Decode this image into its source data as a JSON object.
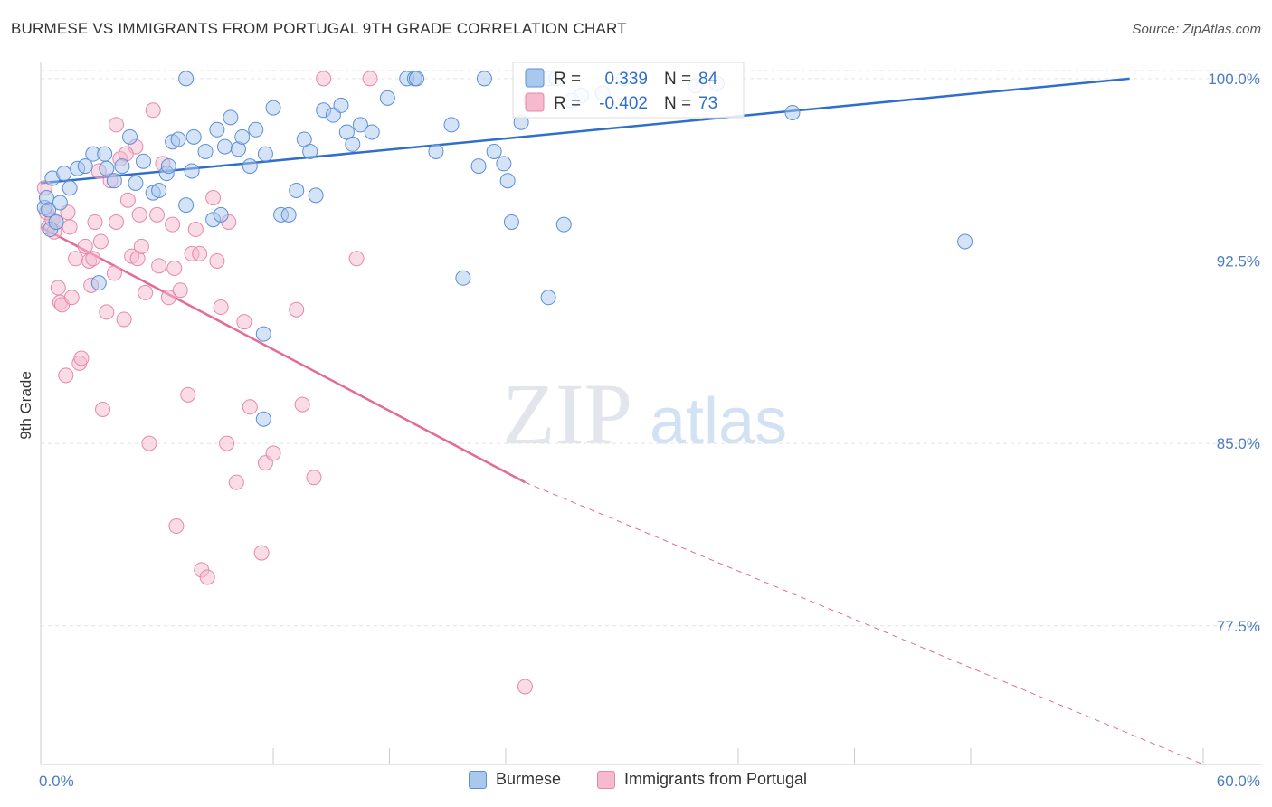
{
  "title": "BURMESE VS IMMIGRANTS FROM PORTUGAL 9TH GRADE CORRELATION CHART",
  "source": "Source: ZipAtlas.com",
  "watermark": {
    "zip": "ZIP",
    "atlas": "atlas"
  },
  "colors": {
    "blue_fill": "#a9c8ee",
    "blue_stroke": "#5b8fd6",
    "blue_line": "#2f6fcb",
    "pink_fill": "#f6b9cd",
    "pink_stroke": "#e688a9",
    "pink_line": "#e56a96",
    "tick_text": "#4a7cc9",
    "grid": "#e3e3e3"
  },
  "legend": {
    "rows": [
      {
        "r_label": "R =",
        "r_value": "0.339",
        "n_label": "N =",
        "n_value": "84"
      },
      {
        "r_label": "R =",
        "r_value": "-0.402",
        "n_label": "N =",
        "n_value": "73"
      }
    ]
  },
  "bottom_legend": [
    {
      "label": "Burmese"
    },
    {
      "label": "Immigrants from Portugal"
    }
  ],
  "chart_data": {
    "type": "scatter",
    "title": "BURMESE VS IMMIGRANTS FROM PORTUGAL 9TH GRADE CORRELATION CHART",
    "xlabel": "",
    "ylabel": "9th Grade",
    "xlim": [
      0,
      60
    ],
    "ylim": [
      71.8,
      100.7
    ],
    "x_tick_labels": [
      {
        "value": 0,
        "label": "0.0%"
      },
      {
        "value": 60,
        "label": "60.0%"
      }
    ],
    "y_tick_labels": [
      {
        "value": 100,
        "label": "100.0%"
      },
      {
        "value": 92.5,
        "label": "92.5%"
      },
      {
        "value": 85,
        "label": "85.0%"
      },
      {
        "value": 77.5,
        "label": "77.5%"
      }
    ],
    "grid": "horizontal",
    "legend_position": "top-center",
    "series": [
      {
        "name": "Burmese",
        "r": 0.339,
        "n": 84,
        "trend": {
          "x": [
            0,
            56.2
          ],
          "y": [
            95.7,
            100.0
          ]
        },
        "points": [
          [
            0.2,
            94.7
          ],
          [
            0.3,
            95.1
          ],
          [
            0.4,
            94.6
          ],
          [
            0.5,
            93.8
          ],
          [
            0.6,
            95.9
          ],
          [
            0.8,
            94.1
          ],
          [
            1.0,
            94.9
          ],
          [
            1.2,
            96.1
          ],
          [
            1.5,
            95.5
          ],
          [
            1.9,
            96.3
          ],
          [
            2.3,
            96.4
          ],
          [
            2.7,
            96.9
          ],
          [
            3.3,
            96.9
          ],
          [
            3.4,
            96.3
          ],
          [
            3.8,
            95.8
          ],
          [
            4.2,
            96.4
          ],
          [
            4.6,
            97.6
          ],
          [
            4.9,
            95.7
          ],
          [
            5.3,
            96.6
          ],
          [
            5.8,
            95.3
          ],
          [
            6.1,
            95.4
          ],
          [
            6.5,
            96.1
          ],
          [
            6.6,
            96.4
          ],
          [
            6.8,
            97.4
          ],
          [
            7.1,
            97.5
          ],
          [
            7.5,
            94.8
          ],
          [
            7.8,
            96.2
          ],
          [
            7.9,
            97.6
          ],
          [
            8.5,
            97.0
          ],
          [
            8.9,
            94.2
          ],
          [
            9.1,
            97.9
          ],
          [
            9.3,
            94.4
          ],
          [
            9.5,
            97.2
          ],
          [
            9.8,
            98.4
          ],
          [
            10.2,
            97.1
          ],
          [
            10.4,
            97.6
          ],
          [
            10.8,
            96.4
          ],
          [
            11.1,
            97.9
          ],
          [
            11.6,
            96.9
          ],
          [
            12.0,
            98.8
          ],
          [
            12.4,
            94.4
          ],
          [
            12.8,
            94.4
          ],
          [
            13.2,
            95.4
          ],
          [
            13.6,
            97.5
          ],
          [
            13.9,
            97.0
          ],
          [
            14.2,
            95.2
          ],
          [
            14.6,
            98.7
          ],
          [
            15.1,
            98.5
          ],
          [
            15.5,
            98.9
          ],
          [
            15.8,
            97.8
          ],
          [
            16.1,
            97.3
          ],
          [
            16.5,
            98.1
          ],
          [
            17.1,
            97.8
          ],
          [
            17.9,
            99.2
          ],
          [
            18.9,
            100.0
          ],
          [
            19.3,
            100.0
          ],
          [
            19.4,
            100.0
          ],
          [
            20.4,
            97.0
          ],
          [
            21.2,
            98.1
          ],
          [
            21.8,
            91.8
          ],
          [
            22.6,
            96.4
          ],
          [
            22.9,
            100.0
          ],
          [
            23.4,
            97.0
          ],
          [
            23.9,
            96.5
          ],
          [
            24.1,
            95.8
          ],
          [
            24.3,
            94.1
          ],
          [
            24.8,
            98.2
          ],
          [
            25.3,
            99.1
          ],
          [
            26.2,
            100.0
          ],
          [
            26.6,
            100.0
          ],
          [
            26.2,
            91.0
          ],
          [
            27.0,
            94.0
          ],
          [
            27.4,
            99.1
          ],
          [
            27.9,
            99.3
          ],
          [
            29.0,
            99.4
          ],
          [
            30.1,
            100.0
          ],
          [
            33.8,
            99.7
          ],
          [
            34.9,
            99.8
          ],
          [
            38.8,
            98.6
          ],
          [
            47.7,
            93.3
          ],
          [
            11.5,
            89.5
          ],
          [
            11.5,
            86.0
          ],
          [
            3.0,
            91.6
          ],
          [
            7.5,
            100.0
          ]
        ]
      },
      {
        "name": "Immigrants from Portugal",
        "r": -0.402,
        "n": 73,
        "trend": {
          "x": [
            0,
            25.0
          ],
          "y": [
            93.9,
            83.4
          ]
        },
        "trend_extension": {
          "x": [
            25.0,
            60.0
          ],
          "y": [
            83.4,
            71.8
          ]
        },
        "points": [
          [
            0.2,
            95.5
          ],
          [
            0.3,
            94.5
          ],
          [
            0.4,
            93.9
          ],
          [
            0.6,
            94.2
          ],
          [
            0.7,
            93.7
          ],
          [
            0.8,
            94.1
          ],
          [
            1.0,
            90.8
          ],
          [
            1.1,
            90.7
          ],
          [
            1.3,
            87.8
          ],
          [
            1.4,
            94.5
          ],
          [
            1.6,
            91.0
          ],
          [
            1.8,
            92.6
          ],
          [
            2.0,
            88.3
          ],
          [
            2.1,
            88.5
          ],
          [
            2.3,
            93.1
          ],
          [
            2.5,
            92.5
          ],
          [
            2.6,
            91.5
          ],
          [
            2.8,
            94.1
          ],
          [
            3.0,
            96.2
          ],
          [
            3.2,
            86.4
          ],
          [
            3.4,
            90.4
          ],
          [
            3.6,
            95.8
          ],
          [
            3.8,
            92.0
          ],
          [
            3.9,
            94.1
          ],
          [
            4.1,
            96.7
          ],
          [
            4.3,
            90.1
          ],
          [
            4.5,
            95.0
          ],
          [
            4.7,
            92.7
          ],
          [
            4.9,
            97.2
          ],
          [
            5.0,
            92.6
          ],
          [
            5.2,
            93.1
          ],
          [
            5.4,
            91.2
          ],
          [
            5.6,
            85.0
          ],
          [
            5.8,
            98.7
          ],
          [
            6.1,
            92.3
          ],
          [
            6.3,
            96.5
          ],
          [
            6.6,
            91.0
          ],
          [
            6.8,
            94.0
          ],
          [
            7.0,
            81.6
          ],
          [
            7.2,
            91.3
          ],
          [
            7.6,
            87.0
          ],
          [
            7.8,
            92.8
          ],
          [
            8.0,
            93.8
          ],
          [
            8.3,
            79.8
          ],
          [
            8.6,
            79.5
          ],
          [
            8.9,
            95.1
          ],
          [
            9.1,
            92.5
          ],
          [
            9.3,
            90.6
          ],
          [
            9.6,
            85.0
          ],
          [
            10.1,
            83.4
          ],
          [
            10.5,
            90.0
          ],
          [
            10.8,
            86.5
          ],
          [
            11.4,
            80.5
          ],
          [
            11.6,
            84.2
          ],
          [
            12.0,
            84.6
          ],
          [
            13.2,
            90.5
          ],
          [
            13.5,
            86.6
          ],
          [
            14.1,
            83.6
          ],
          [
            14.6,
            100.0
          ],
          [
            16.3,
            92.6
          ],
          [
            17.0,
            100.0
          ],
          [
            25.0,
            75.0
          ],
          [
            3.9,
            98.1
          ],
          [
            5.1,
            94.4
          ],
          [
            6.9,
            92.2
          ],
          [
            1.5,
            93.9
          ],
          [
            2.7,
            92.6
          ],
          [
            0.9,
            91.4
          ],
          [
            4.4,
            96.9
          ],
          [
            8.2,
            92.8
          ],
          [
            9.7,
            94.1
          ],
          [
            3.1,
            93.3
          ],
          [
            6.0,
            94.4
          ]
        ]
      }
    ]
  }
}
